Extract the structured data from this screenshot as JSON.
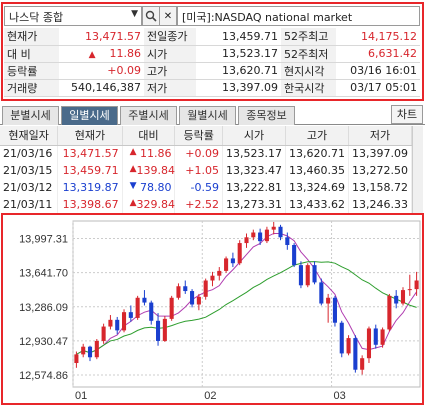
{
  "toolbar": {
    "market_select": "나스닥 종합",
    "search_icon": "search-icon",
    "clear_icon": "close-icon",
    "market_name": "[미국]:NASDAQ national market"
  },
  "quote": {
    "rows": [
      {
        "l1": "현재가",
        "v1": "13,471.57",
        "l2": "전일종가",
        "v2": "13,459.71",
        "l3": "52주최고",
        "v3": "14,175.12"
      },
      {
        "l1": "대  비",
        "v1": "11.86",
        "l2": "시가",
        "v2": "13,523.17",
        "l3": "52주최저",
        "v3": "6,631.42"
      },
      {
        "l1": "등락률",
        "v1": "+0.09",
        "l2": "고가",
        "v2": "13,620.71",
        "l3": "현지시각",
        "v3": "03/16 16:01"
      },
      {
        "l1": "거래량",
        "v1": "540,146,387",
        "l2": "저가",
        "v2": "13,397.09",
        "l3": "한국시각",
        "v3": "03/17 05:01"
      }
    ],
    "up_arrow": "▲"
  },
  "tabs": [
    "분별시세",
    "일별시세",
    "주별시세",
    "월별시세",
    "종목정보"
  ],
  "chart_button": "차트",
  "daily": {
    "headers": [
      "현재일자",
      "현재가",
      "대비",
      "등락률",
      "시가",
      "고가",
      "저가"
    ],
    "rows": [
      {
        "date": "21/03/16",
        "price": "13,471.57",
        "dir": "▲",
        "diff": "11.86",
        "rate": "+0.09",
        "open": "13,523.17",
        "high": "13,620.71",
        "low": "13,397.09"
      },
      {
        "date": "21/03/15",
        "price": "13,459.71",
        "dir": "▲",
        "diff": "139.84",
        "rate": "+1.05",
        "open": "13,323.47",
        "high": "13,460.35",
        "low": "13,272.50"
      },
      {
        "date": "21/03/12",
        "price": "13,319.87",
        "dir": "▼",
        "diff": "78.80",
        "rate": "-0.59",
        "open": "13,222.81",
        "high": "13,324.69",
        "low": "13,158.72"
      },
      {
        "date": "21/03/11",
        "price": "13,398.67",
        "dir": "▲",
        "diff": "329.84",
        "rate": "+2.52",
        "open": "13,273.31",
        "high": "13,433.62",
        "low": "13,246.33"
      }
    ]
  },
  "colors": {
    "up": "#d7262d",
    "down": "#1a3fcf",
    "ma_short": "#b03cb0",
    "ma_long": "#2e9e2e",
    "frame": "#e8262a"
  },
  "chart_data": {
    "type": "candlestick",
    "y_ticks": [
      "13,997.31",
      "13,641.70",
      "13,286.09",
      "12,930.47",
      "12,574.86"
    ],
    "y_tick_values": [
      13997.31,
      13641.7,
      13286.09,
      12930.47,
      12574.86
    ],
    "x_ticks": [
      "01",
      "02",
      "03"
    ],
    "x_tick_index": [
      0,
      19,
      38
    ],
    "ylim": [
      12450,
      14180
    ],
    "grid": true,
    "candles": [
      [
        12700,
        12820,
        12650,
        12790
      ],
      [
        12790,
        12900,
        12760,
        12870
      ],
      [
        12870,
        12880,
        12720,
        12760
      ],
      [
        12760,
        12950,
        12740,
        12930
      ],
      [
        12930,
        13110,
        12900,
        13080
      ],
      [
        13080,
        13200,
        13050,
        13150
      ],
      [
        13150,
        13180,
        13000,
        13040
      ],
      [
        13040,
        13260,
        13020,
        13230
      ],
      [
        13230,
        13300,
        13130,
        13170
      ],
      [
        13170,
        13400,
        13150,
        13380
      ],
      [
        13380,
        13460,
        13300,
        13330
      ],
      [
        13330,
        13350,
        13100,
        13140
      ],
      [
        13140,
        13220,
        12880,
        12930
      ],
      [
        12930,
        13190,
        12920,
        13160
      ],
      [
        13160,
        13400,
        13140,
        13380
      ],
      [
        13380,
        13530,
        13360,
        13500
      ],
      [
        13500,
        13560,
        13420,
        13450
      ],
      [
        13450,
        13470,
        13280,
        13310
      ],
      [
        13310,
        13420,
        13250,
        13390
      ],
      [
        13390,
        13580,
        13360,
        13560
      ],
      [
        13560,
        13650,
        13500,
        13610
      ],
      [
        13610,
        13700,
        13560,
        13660
      ],
      [
        13660,
        13810,
        13640,
        13790
      ],
      [
        13790,
        13850,
        13700,
        13740
      ],
      [
        13740,
        13980,
        13720,
        13950
      ],
      [
        13950,
        14050,
        13900,
        14010
      ],
      [
        14010,
        14090,
        13980,
        14060
      ],
      [
        14060,
        14100,
        13930,
        13970
      ],
      [
        13970,
        14120,
        13950,
        14090
      ],
      [
        14090,
        14170,
        14040,
        14120
      ],
      [
        14120,
        14140,
        13980,
        14010
      ],
      [
        14010,
        14060,
        13880,
        13930
      ],
      [
        13930,
        13950,
        13700,
        13720
      ],
      [
        13720,
        13760,
        13480,
        13510
      ],
      [
        13510,
        13740,
        13490,
        13720
      ],
      [
        13720,
        13760,
        13520,
        13540
      ],
      [
        13540,
        13580,
        13300,
        13320
      ],
      [
        13320,
        13420,
        13120,
        13380
      ],
      [
        13380,
        13400,
        13080,
        13120
      ],
      [
        13120,
        13140,
        12760,
        12800
      ],
      [
        12800,
        12990,
        12780,
        12960
      ],
      [
        12960,
        12990,
        12600,
        12630
      ],
      [
        12630,
        12780,
        12580,
        12750
      ],
      [
        12750,
        13080,
        12700,
        13060
      ],
      [
        13060,
        13100,
        12850,
        12890
      ],
      [
        12890,
        13070,
        12860,
        13050
      ],
      [
        13050,
        13420,
        13030,
        13400
      ],
      [
        13400,
        13460,
        13270,
        13320
      ],
      [
        13320,
        13490,
        13300,
        13460
      ],
      [
        13460,
        13620,
        13400,
        13470
      ],
      [
        13470,
        13650,
        13400,
        13560
      ]
    ]
  }
}
